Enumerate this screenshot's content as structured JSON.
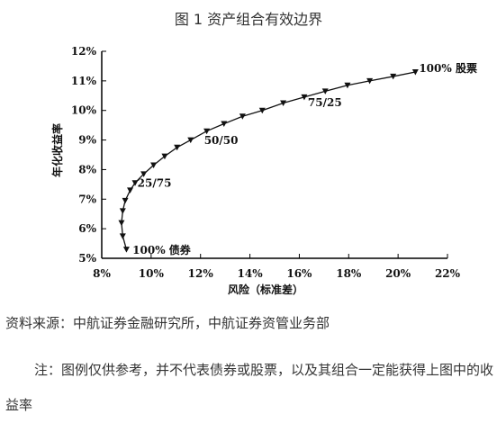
{
  "figure_title": "图 1 资产组合有效边界",
  "source": "资料来源：中航证券金融研究所，中航证券资管业务部",
  "note": "注：图例仅供参考，并不代表债券或股票，以及其组合一定能获得上图中的收益率",
  "chart_data": {
    "type": "line",
    "title": "",
    "xlabel": "风险（标准差）",
    "ylabel": "年化收益率",
    "xlim": [
      8,
      22
    ],
    "ylim": [
      5,
      12
    ],
    "x_ticks": [
      8,
      10,
      12,
      14,
      16,
      18,
      20,
      22
    ],
    "y_ticks": [
      5,
      6,
      7,
      8,
      9,
      10,
      11,
      12
    ],
    "x_tick_labels": [
      "8%",
      "10%",
      "12%",
      "14%",
      "16%",
      "18%",
      "20%",
      "22%"
    ],
    "y_tick_labels": [
      "5%",
      "6%",
      "7%",
      "8%",
      "9%",
      "10%",
      "11%",
      "12%"
    ],
    "grid": false,
    "marker": "triangle-down",
    "series": [
      {
        "x": [
          9.0,
          8.85,
          8.8,
          8.85,
          8.95,
          9.15,
          9.35,
          9.7,
          10.1,
          10.55,
          11.05,
          11.6,
          12.25,
          12.95,
          13.7,
          14.5,
          15.35,
          16.2,
          17.05,
          17.95,
          18.85,
          19.8,
          20.7
        ],
        "y": [
          5.3,
          5.75,
          6.2,
          6.6,
          6.95,
          7.3,
          7.55,
          7.85,
          8.15,
          8.45,
          8.75,
          9.0,
          9.3,
          9.55,
          9.8,
          10.0,
          10.25,
          10.45,
          10.65,
          10.85,
          11.0,
          11.15,
          11.3
        ]
      }
    ],
    "annotations": [
      {
        "text": "100% 债券",
        "x": 9.1,
        "y": 5.3
      },
      {
        "text": "25/75",
        "x": 9.3,
        "y": 7.3
      },
      {
        "text": "50/50",
        "x": 12.0,
        "y": 8.75
      },
      {
        "text": "75/25",
        "x": 16.2,
        "y": 10.05
      },
      {
        "text": "100% 股票",
        "x": 20.7,
        "y": 11.3
      }
    ]
  }
}
